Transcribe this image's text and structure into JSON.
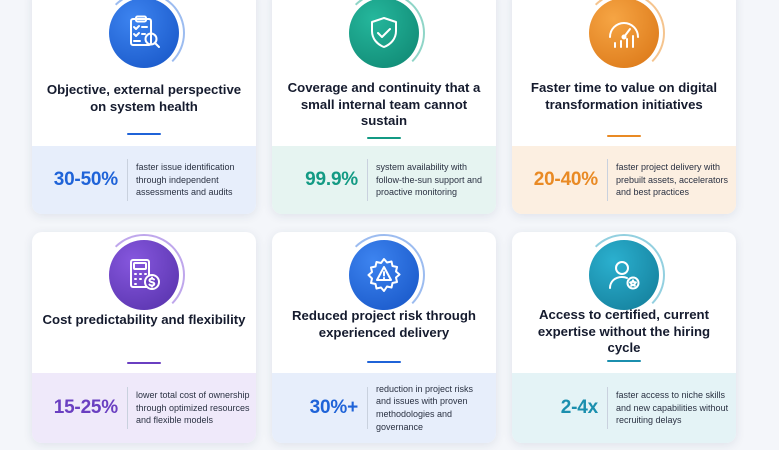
{
  "colors": {
    "blue": "#1f63d8",
    "teal": "#139a84",
    "orange": "#e98a24",
    "purple": "#6a3fc1",
    "cyan": "#1b8fae"
  },
  "cards": [
    {
      "icon": "checklist-magnifier-icon",
      "title": "Objective, external perspective on system health",
      "stat_value": "30-50%",
      "stat_desc": "faster issue identification through independent assessments and audits"
    },
    {
      "icon": "shield-check-icon",
      "title": "Coverage and continuity that a small internal team cannot sustain",
      "stat_value": "99.9%",
      "stat_desc": "system availability with follow-the-sun support and proactive monitoring"
    },
    {
      "icon": "speedometer-chart-icon",
      "title": "Faster time to value on digital transformation initiatives",
      "stat_value": "20-40%",
      "stat_desc": "faster project delivery with prebuilt assets, accelerators and best practices"
    },
    {
      "icon": "calculator-dollar-icon",
      "title": "Cost predictability and flexibility",
      "stat_value": "15-25%",
      "stat_desc": "lower total cost of ownership through optimized resources and flexible models"
    },
    {
      "icon": "gear-warning-icon",
      "title": "Reduced project risk through experienced delivery",
      "stat_value": "30%+",
      "stat_desc": "reduction in project risks and issues with proven methodologies and governance"
    },
    {
      "icon": "certified-expert-icon",
      "title": "Access to certified, current expertise without the hiring cycle",
      "stat_value": "2-4x",
      "stat_desc": "faster access to niche skills and new capabilities without recruiting delays"
    }
  ]
}
